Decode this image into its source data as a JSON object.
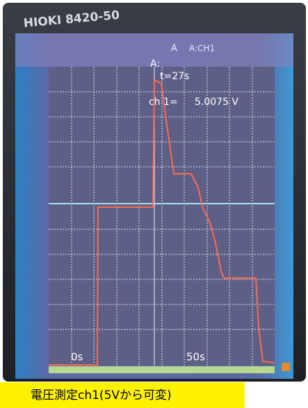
{
  "device": {
    "brand": "HIOKI 8420-50"
  },
  "screen": {
    "menu": {
      "cursor": "A",
      "channel": "A:CH1"
    },
    "readout": {
      "cursor": "A:",
      "time": "t=27s",
      "channel": "ch 1=",
      "value": "5.0075 V"
    },
    "axis": {
      "start": "0s",
      "end": "50s"
    }
  },
  "caption": "電圧測定ch1(5Vから可変)"
}
